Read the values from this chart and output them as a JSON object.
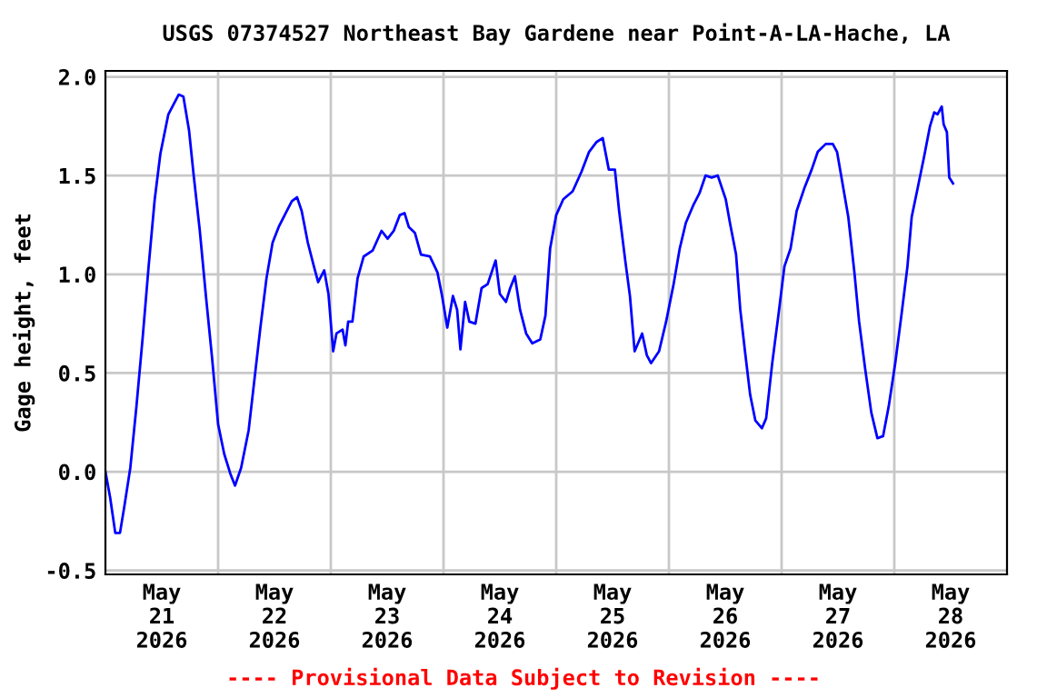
{
  "chart_data": {
    "type": "line",
    "title": "USGS 07374527 Northeast Bay Gardene near Point-A-LA-Hache, LA",
    "ylabel": "Gage height, feet",
    "annotations": [
      "---- Provisional Data Subject to Revision ----"
    ],
    "x": [
      "2026-05-21T00:00",
      "2026-05-21T01:00",
      "2026-05-21T02:06",
      "2026-05-21T03:06",
      "2026-05-21T04:00",
      "2026-05-21T05:18",
      "2026-05-21T06:36",
      "2026-05-21T07:54",
      "2026-05-21T09:12",
      "2026-05-21T10:30",
      "2026-05-21T11:42",
      "2026-05-21T13:24",
      "2026-05-21T15:36",
      "2026-05-21T16:36",
      "2026-05-21T17:48",
      "2026-05-21T18:48",
      "2026-05-21T20:06",
      "2026-05-21T21:24",
      "2026-05-21T22:42",
      "2026-05-22T00:00",
      "2026-05-22T01:18",
      "2026-05-22T02:36",
      "2026-05-22T03:36",
      "2026-05-22T04:54",
      "2026-05-22T06:30",
      "2026-05-22T07:42",
      "2026-05-22T09:00",
      "2026-05-22T10:18",
      "2026-05-22T11:36",
      "2026-05-22T12:54",
      "2026-05-22T14:24",
      "2026-05-22T15:42",
      "2026-05-22T16:48",
      "2026-05-22T17:48",
      "2026-05-22T19:06",
      "2026-05-22T20:24",
      "2026-05-22T21:18",
      "2026-05-22T22:36",
      "2026-05-22T23:30",
      "2026-05-23T00:30",
      "2026-05-23T01:12",
      "2026-05-23T02:30",
      "2026-05-23T03:06",
      "2026-05-23T03:42",
      "2026-05-23T04:36",
      "2026-05-23T05:42",
      "2026-05-23T07:00",
      "2026-05-23T08:54",
      "2026-05-23T10:48",
      "2026-05-23T12:06",
      "2026-05-23T13:24",
      "2026-05-23T14:42",
      "2026-05-23T15:42",
      "2026-05-23T16:36",
      "2026-05-23T17:54",
      "2026-05-23T19:12",
      "2026-05-23T21:06",
      "2026-05-23T22:42",
      "2026-05-23T23:42",
      "2026-05-24T00:48",
      "2026-05-24T02:00",
      "2026-05-24T02:54",
      "2026-05-24T03:36",
      "2026-05-24T04:36",
      "2026-05-24T05:30",
      "2026-05-24T06:48",
      "2026-05-24T08:06",
      "2026-05-24T09:24",
      "2026-05-24T11:06",
      "2026-05-24T12:00",
      "2026-05-24T13:18",
      "2026-05-24T14:12",
      "2026-05-24T15:12",
      "2026-05-24T16:18",
      "2026-05-24T17:36",
      "2026-05-24T18:54",
      "2026-05-24T20:36",
      "2026-05-24T21:42",
      "2026-05-24T22:42",
      "2026-05-25T00:00",
      "2026-05-25T01:30",
      "2026-05-25T03:30",
      "2026-05-25T05:24",
      "2026-05-25T07:00",
      "2026-05-25T08:36",
      "2026-05-25T09:54",
      "2026-05-25T11:12",
      "2026-05-25T12:30",
      "2026-05-25T13:24",
      "2026-05-25T14:42",
      "2026-05-25T15:42",
      "2026-05-25T16:42",
      "2026-05-25T18:18",
      "2026-05-25T19:18",
      "2026-05-25T20:12",
      "2026-05-25T21:54",
      "2026-05-25T23:24",
      "2026-05-26T01:00",
      "2026-05-26T02:18",
      "2026-05-26T03:36",
      "2026-05-26T05:12",
      "2026-05-26T06:30",
      "2026-05-26T07:48",
      "2026-05-26T09:06",
      "2026-05-26T10:24",
      "2026-05-26T12:06",
      "2026-05-26T13:00",
      "2026-05-26T14:18",
      "2026-05-26T15:12",
      "2026-05-26T16:12",
      "2026-05-26T17:18",
      "2026-05-26T18:24",
      "2026-05-26T19:48",
      "2026-05-26T20:42",
      "2026-05-26T22:00",
      "2026-05-26T23:18",
      "2026-05-27T00:36",
      "2026-05-27T01:54",
      "2026-05-27T03:12",
      "2026-05-27T04:54",
      "2026-05-27T06:24",
      "2026-05-27T07:42",
      "2026-05-27T09:24",
      "2026-05-27T10:54",
      "2026-05-27T11:48",
      "2026-05-27T12:54",
      "2026-05-27T14:12",
      "2026-05-27T15:30",
      "2026-05-27T16:30",
      "2026-05-27T17:48",
      "2026-05-27T19:06",
      "2026-05-27T20:24",
      "2026-05-27T21:36",
      "2026-05-27T22:48",
      "2026-05-28T00:12",
      "2026-05-28T01:30",
      "2026-05-28T02:48",
      "2026-05-28T03:42",
      "2026-05-28T05:00",
      "2026-05-28T06:18",
      "2026-05-28T07:36",
      "2026-05-28T08:30",
      "2026-05-28T09:12",
      "2026-05-28T10:06",
      "2026-05-28T10:30",
      "2026-05-28T11:12",
      "2026-05-28T11:42",
      "2026-05-28T12:30"
    ],
    "series": [
      {
        "color": "#0000ff",
        "values": [
          0.0,
          -0.13,
          -0.31,
          -0.31,
          -0.18,
          0.02,
          0.33,
          0.67,
          1.04,
          1.38,
          1.61,
          1.81,
          1.91,
          1.9,
          1.73,
          1.5,
          1.22,
          0.89,
          0.58,
          0.24,
          0.09,
          -0.01,
          -0.07,
          0.02,
          0.21,
          0.46,
          0.73,
          0.98,
          1.16,
          1.24,
          1.31,
          1.37,
          1.39,
          1.32,
          1.16,
          1.04,
          0.96,
          1.02,
          0.9,
          0.61,
          0.7,
          0.72,
          0.64,
          0.76,
          0.76,
          0.98,
          1.09,
          1.12,
          1.22,
          1.18,
          1.22,
          1.3,
          1.31,
          1.24,
          1.21,
          1.1,
          1.09,
          1.01,
          0.89,
          0.73,
          0.89,
          0.82,
          0.62,
          0.86,
          0.76,
          0.75,
          0.93,
          0.95,
          1.07,
          0.9,
          0.86,
          0.93,
          0.99,
          0.82,
          0.7,
          0.65,
          0.67,
          0.79,
          1.13,
          1.3,
          1.38,
          1.42,
          1.52,
          1.62,
          1.67,
          1.69,
          1.53,
          1.53,
          1.32,
          1.07,
          0.89,
          0.61,
          0.7,
          0.59,
          0.55,
          0.61,
          0.76,
          0.95,
          1.13,
          1.26,
          1.35,
          1.41,
          1.5,
          1.49,
          1.5,
          1.38,
          1.26,
          1.1,
          0.82,
          0.61,
          0.39,
          0.26,
          0.22,
          0.27,
          0.55,
          0.79,
          1.04,
          1.13,
          1.32,
          1.44,
          1.53,
          1.62,
          1.66,
          1.66,
          1.62,
          1.47,
          1.29,
          1.01,
          0.76,
          0.52,
          0.3,
          0.17,
          0.18,
          0.33,
          0.55,
          0.79,
          1.04,
          1.29,
          1.44,
          1.59,
          1.75,
          1.82,
          1.81,
          1.85,
          1.76,
          1.72,
          1.49,
          1.46
        ]
      }
    ],
    "xlim": [
      "2026-05-21T00:00",
      "2026-05-29T00:00"
    ],
    "xticks": [
      {
        "value": "2026-05-21T12:00",
        "label": "May\n21\n2026"
      },
      {
        "value": "2026-05-22T00:00",
        "label": null
      },
      {
        "value": "2026-05-22T12:00",
        "label": "May\n22\n2026"
      },
      {
        "value": "2026-05-23T00:00",
        "label": null
      },
      {
        "value": "2026-05-23T12:00",
        "label": "May\n23\n2026"
      },
      {
        "value": "2026-05-24T00:00",
        "label": null
      },
      {
        "value": "2026-05-24T12:00",
        "label": "May\n24\n2026"
      },
      {
        "value": "2026-05-25T00:00",
        "label": null
      },
      {
        "value": "2026-05-25T12:00",
        "label": "May\n25\n2026"
      },
      {
        "value": "2026-05-26T00:00",
        "label": null
      },
      {
        "value": "2026-05-26T12:00",
        "label": "May\n26\n2026"
      },
      {
        "value": "2026-05-27T00:00",
        "label": null
      },
      {
        "value": "2026-05-27T12:00",
        "label": "May\n27\n2026"
      },
      {
        "value": "2026-05-28T00:00",
        "label": null
      },
      {
        "value": "2026-05-28T12:00",
        "label": "May\n28\n2026"
      }
    ],
    "ylim": [
      -0.52,
      2.03
    ],
    "yticks": [
      {
        "value": -0.5,
        "label": "-0.5"
      },
      {
        "value": 0.0,
        "label": "0.0"
      },
      {
        "value": 0.5,
        "label": "0.5"
      },
      {
        "value": 1.0,
        "label": "1.0"
      },
      {
        "value": 1.5,
        "label": "1.5"
      },
      {
        "value": 2.0,
        "label": "2.0"
      }
    ],
    "grid": true,
    "legend": false,
    "marker": "none",
    "line_style": "solid"
  }
}
